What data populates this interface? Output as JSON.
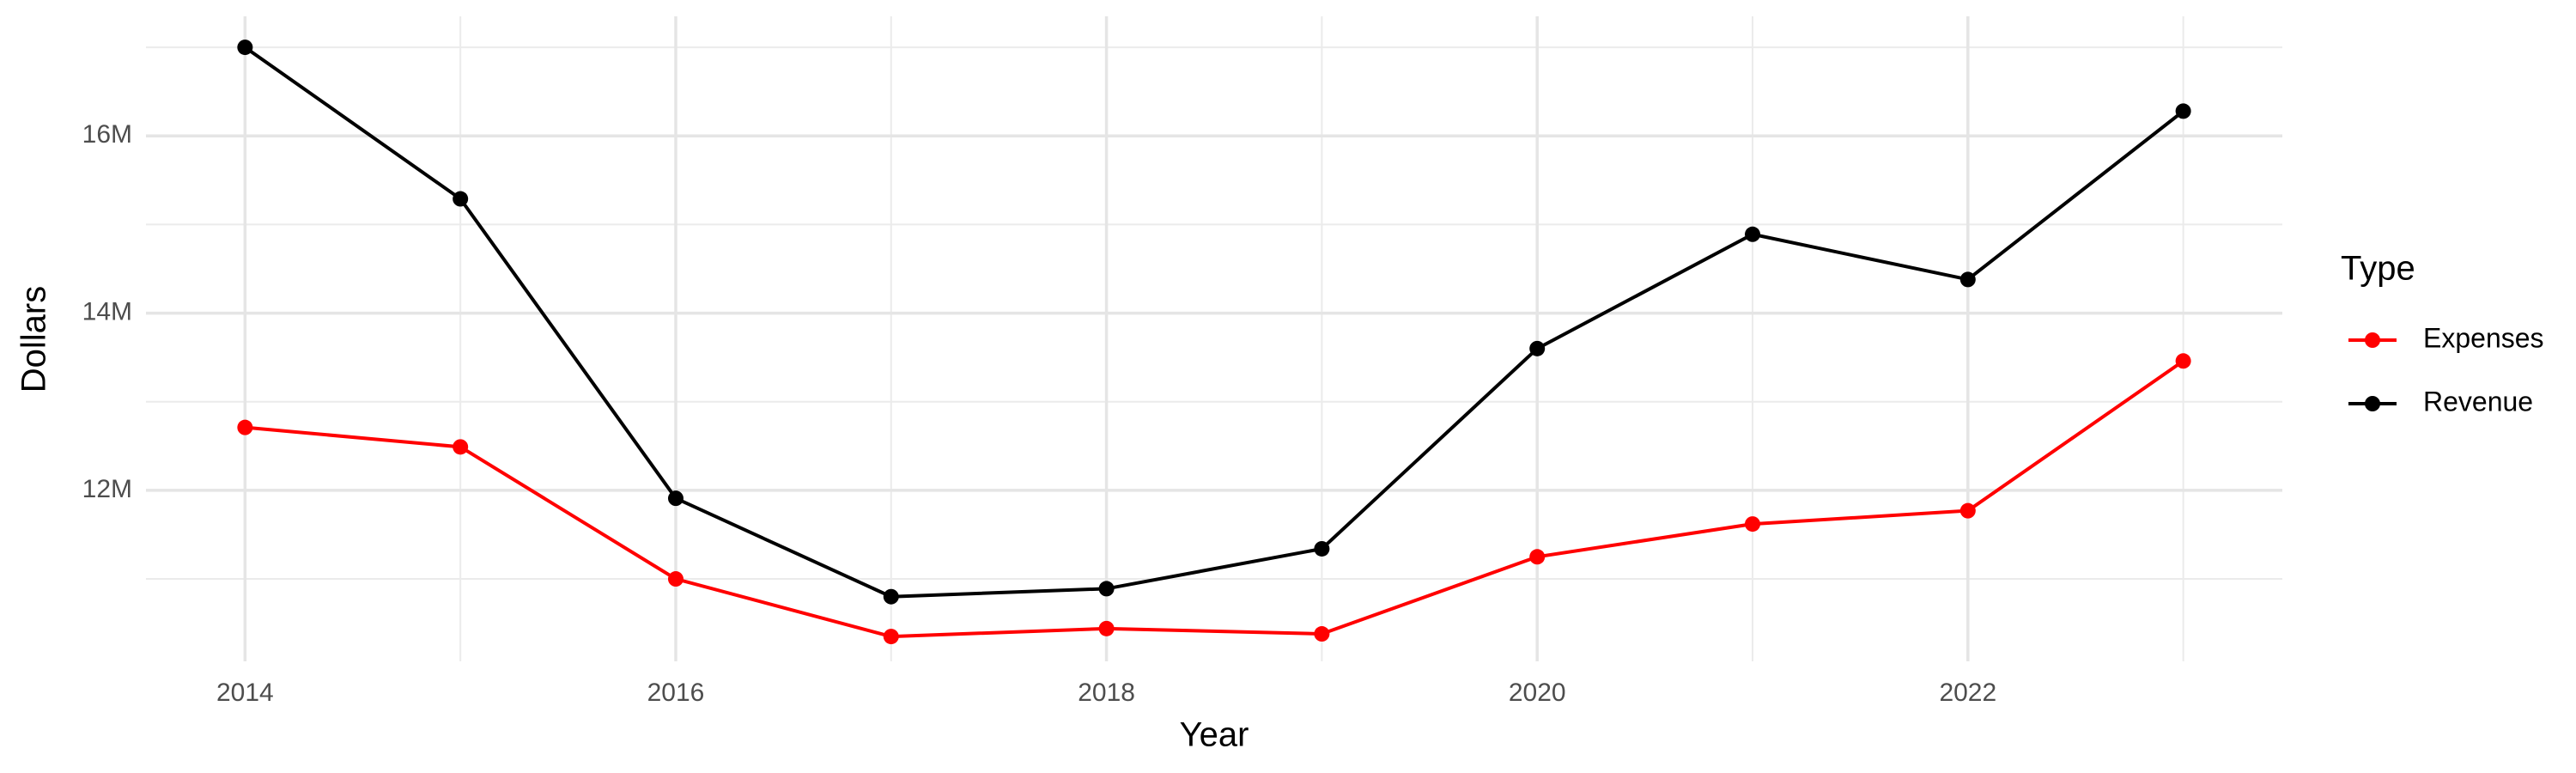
{
  "chart_data": {
    "type": "line",
    "x_label": "Year",
    "y_label": "Dollars",
    "legend_title": "Type",
    "legend_position": "right",
    "x": [
      2014,
      2015,
      2016,
      2017,
      2018,
      2019,
      2020,
      2021,
      2022,
      2023
    ],
    "series": [
      {
        "name": "Expenses",
        "color": "#ff0000",
        "values": [
          12710000,
          12490000,
          11000000,
          10350000,
          10440000,
          10380000,
          11250000,
          11620000,
          11770000,
          13460000
        ]
      },
      {
        "name": "Revenue",
        "color": "#000000",
        "values": [
          17000000,
          15290000,
          11910000,
          10800000,
          10890000,
          11340000,
          13600000,
          14890000,
          14380000,
          16280000
        ]
      }
    ],
    "xlim": [
      2013.54,
      2023.46
    ],
    "ylim": [
      10070000,
      17350000
    ],
    "xticks": [
      2014,
      2016,
      2018,
      2020,
      2022
    ],
    "yticks": [
      {
        "value": 12000000,
        "label": "12M"
      },
      {
        "value": 14000000,
        "label": "14M"
      },
      {
        "value": 16000000,
        "label": "16M"
      }
    ],
    "x_minor_ticks": [
      2015,
      2017,
      2019,
      2021,
      2023
    ],
    "y_minor_ticks": [
      11000000,
      13000000,
      15000000,
      17000000
    ],
    "grid": true
  }
}
